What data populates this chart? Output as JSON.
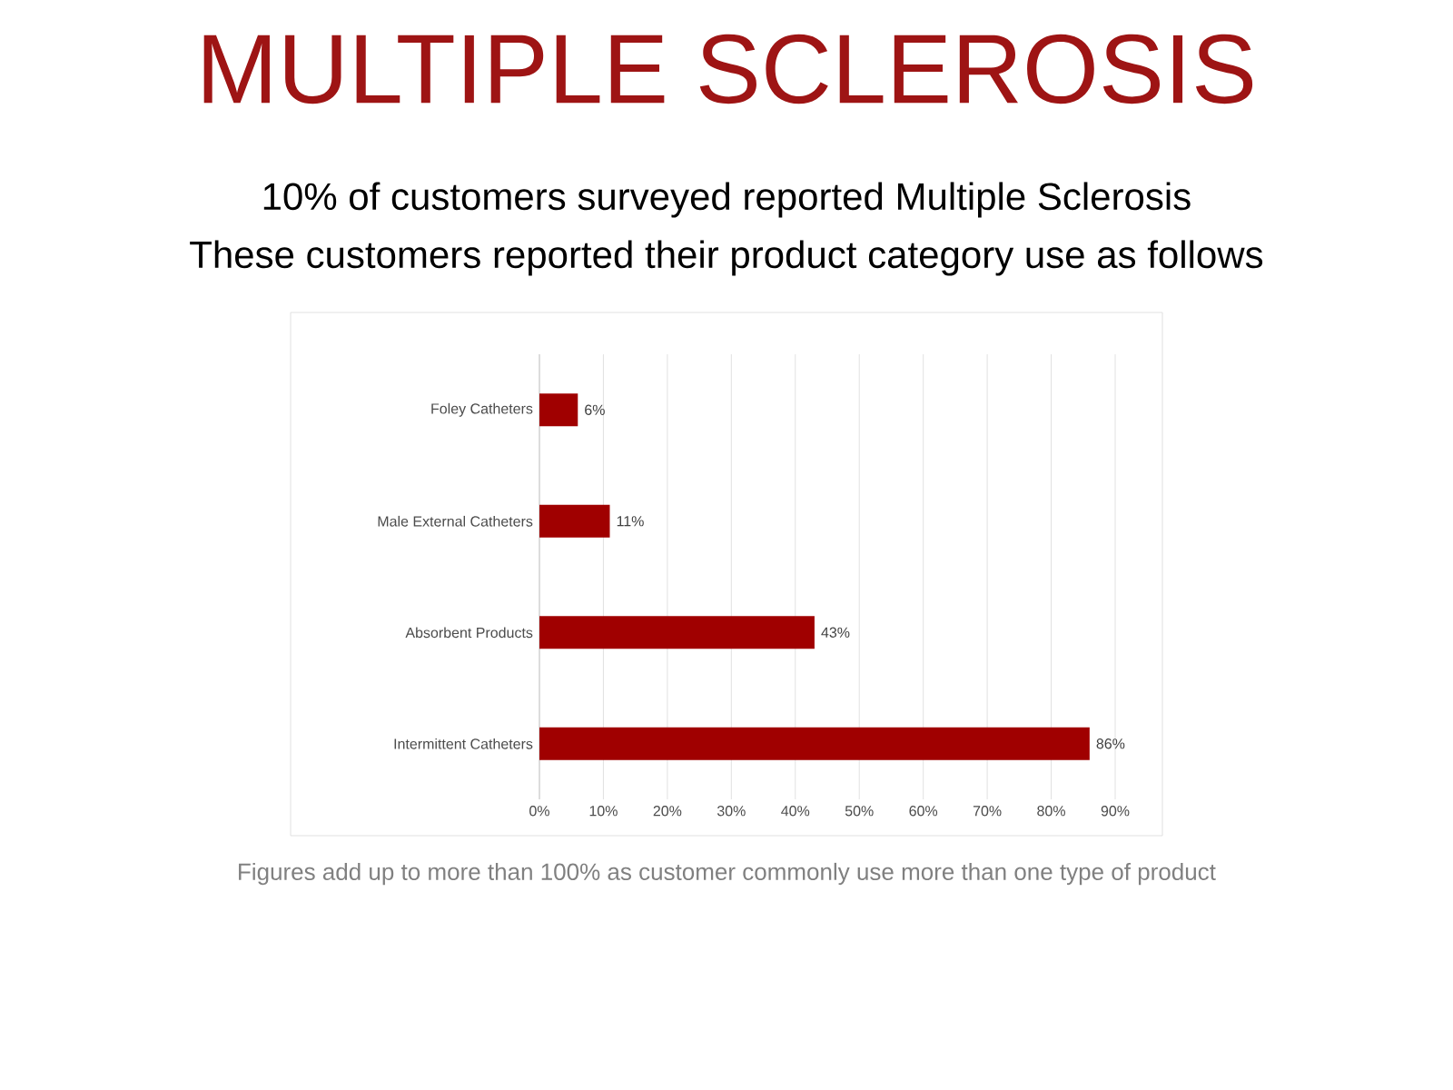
{
  "chart_data": {
    "type": "bar",
    "orientation": "horizontal",
    "title": "MULTIPLE SCLEROSIS",
    "subtitle": "10% of customers surveyed reported Multiple Sclerosis\nThese customers reported their product category use as follows",
    "categories": [
      "Foley Catheters",
      "Male External Catheters",
      "Absorbent Products",
      "Intermittent Catheters"
    ],
    "values": [
      6,
      11,
      43,
      86
    ],
    "value_labels": [
      "6%",
      "11%",
      "43%",
      "86%"
    ],
    "color": "#a00000",
    "xlim": [
      0,
      90
    ],
    "xticks": [
      {
        "value": 0,
        "label": "0%"
      },
      {
        "value": 10,
        "label": "10%"
      },
      {
        "value": 20,
        "label": "20%"
      },
      {
        "value": 30,
        "label": "30%"
      },
      {
        "value": 40,
        "label": "40%"
      },
      {
        "value": 50,
        "label": "50%"
      },
      {
        "value": 60,
        "label": "60%"
      },
      {
        "value": 70,
        "label": "70%"
      },
      {
        "value": 80,
        "label": "80%"
      },
      {
        "value": 90,
        "label": "90%"
      }
    ],
    "grid": "x",
    "annotations": [
      "Figures add up to more than 100% as customer commonly use more than one type of product"
    ]
  }
}
